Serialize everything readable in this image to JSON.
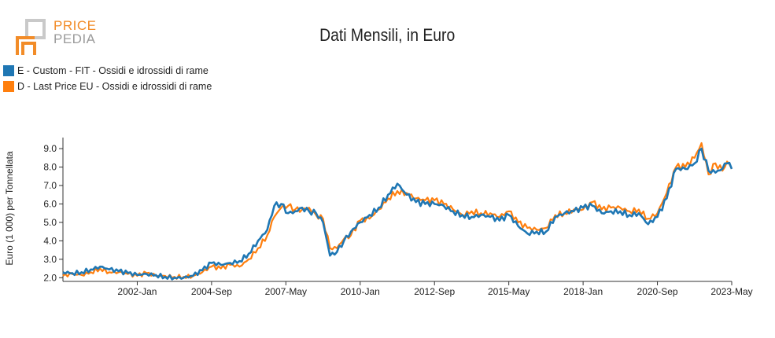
{
  "logo": {
    "line1": "PRICE",
    "line2": "PEDIA"
  },
  "colors": {
    "accent": "#f28c28",
    "series_e": "#1f77b4",
    "series_d": "#ff7f0e"
  },
  "chart_data": {
    "type": "line",
    "title": "Dati Mensili, in Euro",
    "ylabel": "Euro (1 000) per Tonnellata",
    "xlabel": "",
    "ylim": [
      1.8,
      9.6
    ],
    "yticks": [
      "2.0",
      "3.0",
      "4.0",
      "5.0",
      "6.0",
      "7.0",
      "8.0",
      "9.0"
    ],
    "xticks": [
      "2002-Jan",
      "2004-Sep",
      "2007-May",
      "2010-Jan",
      "2012-Sep",
      "2015-May",
      "2018-Jan",
      "2020-Sep",
      "2023-May"
    ],
    "legend_position": "top-left",
    "grid": false,
    "series": [
      {
        "name": "E - Custom - FIT - Ossidi e idrossidi di rame",
        "color": "#1f77b4",
        "points": [
          [
            "1999-05",
            2.3
          ],
          [
            "1999-09",
            2.25
          ],
          [
            "2000-01",
            2.3
          ],
          [
            "2000-05",
            2.45
          ],
          [
            "2000-09",
            2.6
          ],
          [
            "2001-01",
            2.45
          ],
          [
            "2001-05",
            2.35
          ],
          [
            "2001-09",
            2.25
          ],
          [
            "2002-01",
            2.15
          ],
          [
            "2002-05",
            2.2
          ],
          [
            "2002-09",
            2.15
          ],
          [
            "2003-01",
            2.05
          ],
          [
            "2003-05",
            2.0
          ],
          [
            "2003-09",
            2.0
          ],
          [
            "2004-01",
            2.1
          ],
          [
            "2004-05",
            2.4
          ],
          [
            "2004-09",
            2.8
          ],
          [
            "2005-01",
            2.7
          ],
          [
            "2005-05",
            2.8
          ],
          [
            "2005-09",
            2.9
          ],
          [
            "2006-01",
            3.3
          ],
          [
            "2006-05",
            4.0
          ],
          [
            "2006-09",
            4.6
          ],
          [
            "2006-12",
            5.9
          ],
          [
            "2007-03",
            6.0
          ],
          [
            "2007-06",
            5.5
          ],
          [
            "2007-09",
            5.6
          ],
          [
            "2007-12",
            5.8
          ],
          [
            "2008-03",
            5.6
          ],
          [
            "2008-06",
            5.5
          ],
          [
            "2008-09",
            5.0
          ],
          [
            "2008-12",
            3.2
          ],
          [
            "2009-03",
            3.4
          ],
          [
            "2009-06",
            4.0
          ],
          [
            "2009-09",
            4.5
          ],
          [
            "2010-01",
            5.0
          ],
          [
            "2010-05",
            5.4
          ],
          [
            "2010-09",
            5.8
          ],
          [
            "2011-01",
            6.5
          ],
          [
            "2011-05",
            7.1
          ],
          [
            "2011-09",
            6.5
          ],
          [
            "2012-01",
            6.1
          ],
          [
            "2012-05",
            6.0
          ],
          [
            "2012-09",
            6.0
          ],
          [
            "2013-01",
            5.9
          ],
          [
            "2013-05",
            5.6
          ],
          [
            "2013-09",
            5.4
          ],
          [
            "2014-01",
            5.3
          ],
          [
            "2014-05",
            5.4
          ],
          [
            "2014-09",
            5.3
          ],
          [
            "2015-01",
            5.1
          ],
          [
            "2015-05",
            5.4
          ],
          [
            "2015-09",
            4.8
          ],
          [
            "2016-01",
            4.4
          ],
          [
            "2016-05",
            4.5
          ],
          [
            "2016-09",
            4.5
          ],
          [
            "2017-01",
            5.3
          ],
          [
            "2017-05",
            5.5
          ],
          [
            "2017-09",
            5.6
          ],
          [
            "2018-01",
            5.8
          ],
          [
            "2018-05",
            5.9
          ],
          [
            "2018-09",
            5.5
          ],
          [
            "2019-01",
            5.6
          ],
          [
            "2019-05",
            5.6
          ],
          [
            "2019-09",
            5.4
          ],
          [
            "2020-01",
            5.5
          ],
          [
            "2020-05",
            4.9
          ],
          [
            "2020-09",
            5.3
          ],
          [
            "2021-01",
            6.3
          ],
          [
            "2021-05",
            7.9
          ],
          [
            "2021-09",
            7.9
          ],
          [
            "2022-01",
            8.2
          ],
          [
            "2022-04",
            9.0
          ],
          [
            "2022-07",
            7.8
          ],
          [
            "2022-10",
            7.7
          ],
          [
            "2023-01",
            7.9
          ],
          [
            "2023-03",
            8.2
          ],
          [
            "2023-05",
            7.9
          ]
        ]
      },
      {
        "name": "D - Last Price EU - Ossidi e idrossidi di rame",
        "color": "#ff7f0e",
        "points": [
          [
            "1999-05",
            2.1
          ],
          [
            "1999-09",
            2.2
          ],
          [
            "2000-01",
            2.15
          ],
          [
            "2000-05",
            2.3
          ],
          [
            "2000-09",
            2.5
          ],
          [
            "2001-01",
            2.3
          ],
          [
            "2001-05",
            2.3
          ],
          [
            "2001-09",
            2.2
          ],
          [
            "2002-01",
            2.1
          ],
          [
            "2002-05",
            2.25
          ],
          [
            "2002-09",
            2.1
          ],
          [
            "2003-01",
            2.1
          ],
          [
            "2003-05",
            2.05
          ],
          [
            "2003-09",
            2.05
          ],
          [
            "2004-01",
            2.1
          ],
          [
            "2004-05",
            2.3
          ],
          [
            "2004-09",
            2.6
          ],
          [
            "2005-01",
            2.5
          ],
          [
            "2005-05",
            2.7
          ],
          [
            "2005-09",
            2.6
          ],
          [
            "2006-01",
            3.0
          ],
          [
            "2006-05",
            3.6
          ],
          [
            "2006-09",
            4.3
          ],
          [
            "2006-12",
            5.3
          ],
          [
            "2007-03",
            5.8
          ],
          [
            "2007-06",
            5.9
          ],
          [
            "2007-09",
            5.7
          ],
          [
            "2007-12",
            5.7
          ],
          [
            "2008-03",
            5.8
          ],
          [
            "2008-06",
            5.4
          ],
          [
            "2008-09",
            5.2
          ],
          [
            "2008-12",
            3.6
          ],
          [
            "2009-03",
            3.6
          ],
          [
            "2009-06",
            4.1
          ],
          [
            "2009-09",
            4.3
          ],
          [
            "2010-01",
            5.1
          ],
          [
            "2010-05",
            5.2
          ],
          [
            "2010-09",
            5.7
          ],
          [
            "2011-01",
            6.3
          ],
          [
            "2011-05",
            6.7
          ],
          [
            "2011-09",
            6.6
          ],
          [
            "2012-01",
            6.3
          ],
          [
            "2012-05",
            6.2
          ],
          [
            "2012-09",
            6.2
          ],
          [
            "2013-01",
            6.0
          ],
          [
            "2013-05",
            5.7
          ],
          [
            "2013-09",
            5.4
          ],
          [
            "2014-01",
            5.6
          ],
          [
            "2014-05",
            5.5
          ],
          [
            "2014-09",
            5.5
          ],
          [
            "2015-01",
            5.3
          ],
          [
            "2015-05",
            5.6
          ],
          [
            "2015-09",
            5.0
          ],
          [
            "2016-01",
            4.7
          ],
          [
            "2016-05",
            4.6
          ],
          [
            "2016-09",
            4.7
          ],
          [
            "2017-01",
            5.4
          ],
          [
            "2017-05",
            5.5
          ],
          [
            "2017-09",
            5.7
          ],
          [
            "2018-01",
            5.7
          ],
          [
            "2018-05",
            6.1
          ],
          [
            "2018-09",
            5.7
          ],
          [
            "2019-01",
            5.8
          ],
          [
            "2019-05",
            5.8
          ],
          [
            "2019-09",
            5.6
          ],
          [
            "2020-01",
            5.7
          ],
          [
            "2020-05",
            5.2
          ],
          [
            "2020-09",
            5.5
          ],
          [
            "2021-01",
            6.6
          ],
          [
            "2021-05",
            8.0
          ],
          [
            "2021-09",
            8.0
          ],
          [
            "2022-01",
            8.5
          ],
          [
            "2022-04",
            9.3
          ],
          [
            "2022-07",
            7.6
          ],
          [
            "2022-10",
            8.2
          ],
          [
            "2023-01",
            7.8
          ],
          [
            "2023-03",
            8.3
          ],
          [
            "2023-05",
            7.9
          ]
        ]
      }
    ]
  }
}
